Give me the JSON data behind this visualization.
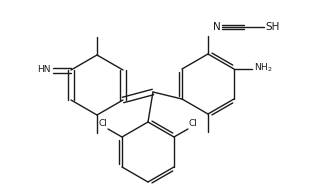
{
  "bg_color": "#ffffff",
  "line_color": "#1a1a1a",
  "line_width": 1.0,
  "font_size": 6.5,
  "figsize": [
    3.11,
    1.85
  ],
  "dpi": 100,
  "xlim": [
    0,
    311
  ],
  "ylim": [
    0,
    185
  ]
}
